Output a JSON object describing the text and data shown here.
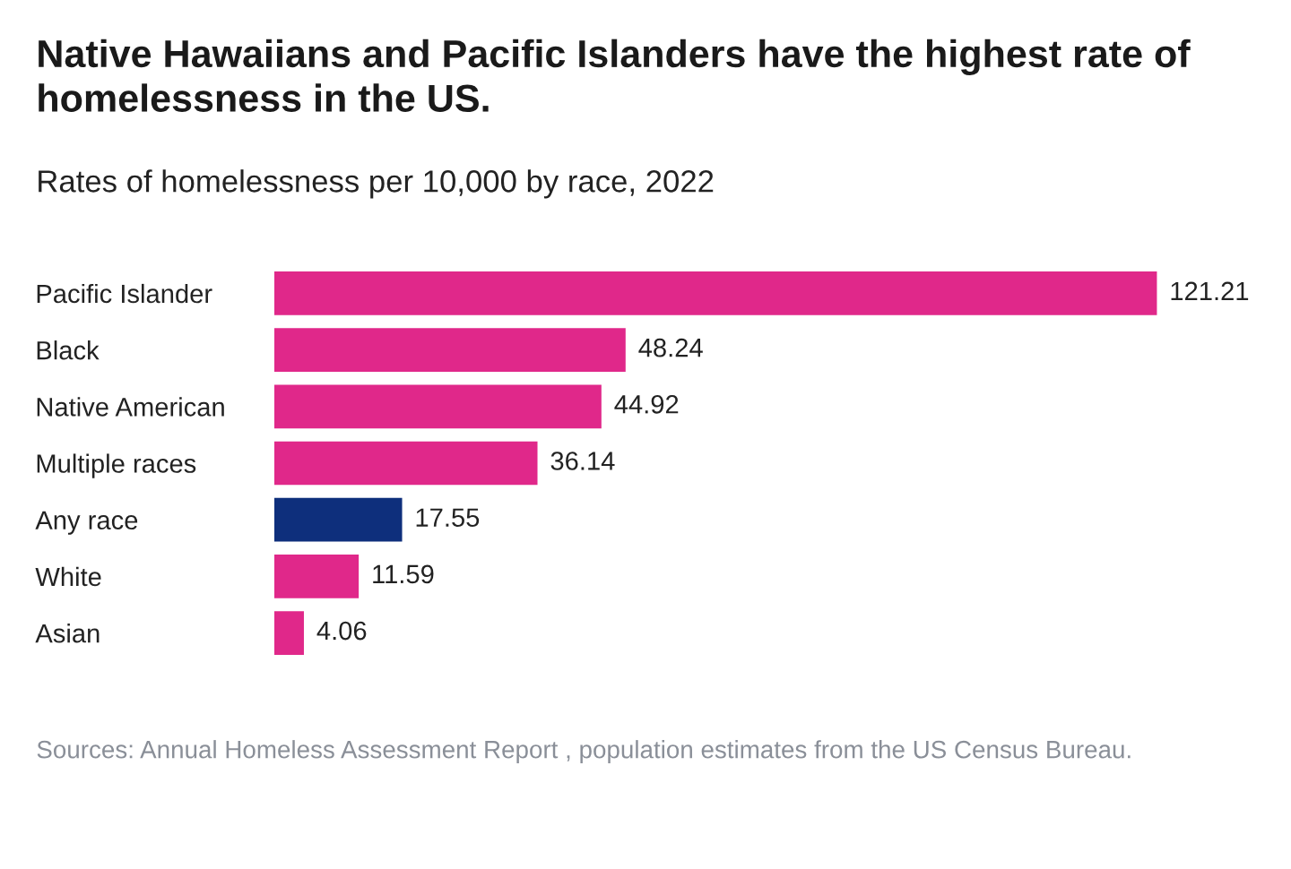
{
  "chart_data": {
    "type": "bar",
    "orientation": "horizontal",
    "title": "Native Hawaiians and Pacific Islanders have the highest rate of homelessness in the US.",
    "subtitle": "Rates of homelessness per 10,000 by race, 2022",
    "categories": [
      "Pacific Islander",
      "Black",
      "Native American",
      "Multiple races",
      "Any race",
      "White",
      "Asian"
    ],
    "values": [
      121.21,
      48.24,
      44.92,
      36.14,
      17.55,
      11.59,
      4.06
    ],
    "colors": [
      "#e0288a",
      "#e0288a",
      "#e0288a",
      "#e0288a",
      "#0e2f7c",
      "#e0288a",
      "#e0288a"
    ],
    "data_labels": true,
    "grid": false,
    "legend": false,
    "annotations": [
      "Sources: Annual Homeless Assessment Report , population estimates from the US Census Bureau."
    ]
  }
}
